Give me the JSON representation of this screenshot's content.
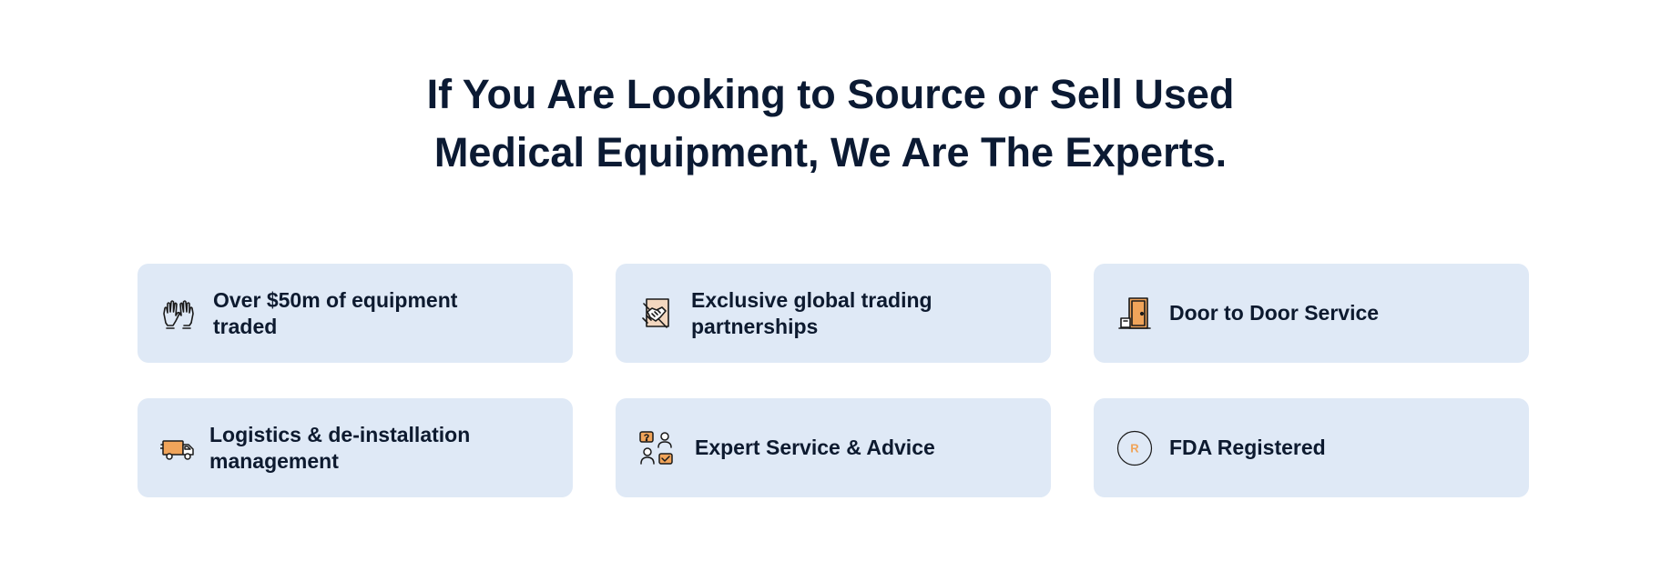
{
  "heading": {
    "line1": "If You Are Looking to Source or Sell Used",
    "line2": "Medical Equipment, We Are The Experts."
  },
  "features": [
    {
      "icon": "gloves-icon",
      "label": "Over $50m of equipment traded"
    },
    {
      "icon": "handshake-icon",
      "label": "Exclusive global trading partnerships"
    },
    {
      "icon": "door-icon",
      "label": "Door to Door Service"
    },
    {
      "icon": "delivery-truck-icon",
      "label": "Logistics & de-installation management"
    },
    {
      "icon": "expert-advice-icon",
      "label": "Expert Service & Advice"
    },
    {
      "icon": "registered-icon",
      "label": "FDA Registered",
      "icon_text": "R"
    }
  ],
  "colors": {
    "heading": "#0b1a33",
    "card_bg": "#dfe9f6",
    "accent_orange": "#f0a45a"
  }
}
